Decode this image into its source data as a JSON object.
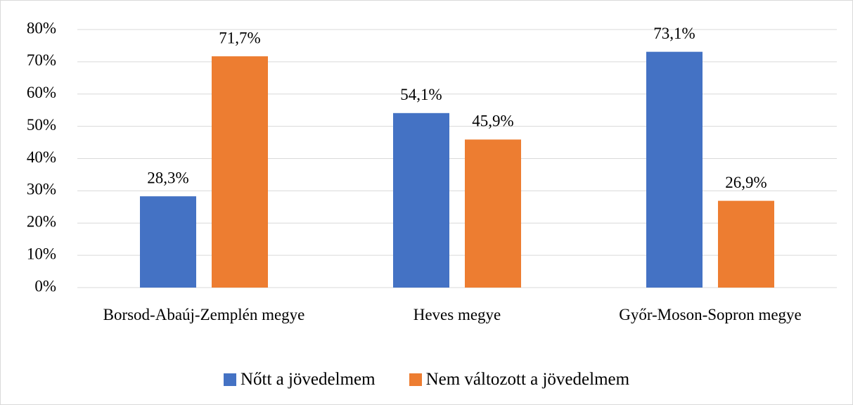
{
  "chart_data": {
    "type": "bar",
    "categories": [
      "Borsod-Abaúj-Zemplén megye",
      "Heves megye",
      "Győr-Moson-Sopron megye"
    ],
    "series": [
      {
        "name": "Nőtt a jövedelmem",
        "color": "#4472c4",
        "values": [
          28.3,
          54.1,
          73.1
        ],
        "value_labels": [
          "28,3%",
          "54,1%",
          "73,1%"
        ]
      },
      {
        "name": "Nem változott a jövedelmem",
        "color": "#ed7d31",
        "values": [
          71.7,
          45.9,
          26.9
        ],
        "value_labels": [
          "71,7%",
          "45,9%",
          "26,9%"
        ]
      }
    ],
    "ylim": [
      0,
      80
    ],
    "yticks": [
      {
        "value": 0,
        "label": "0%"
      },
      {
        "value": 10,
        "label": "10%"
      },
      {
        "value": 20,
        "label": "20%"
      },
      {
        "value": 30,
        "label": "30%"
      },
      {
        "value": 40,
        "label": "40%"
      },
      {
        "value": 50,
        "label": "50%"
      },
      {
        "value": 60,
        "label": "60%"
      },
      {
        "value": 70,
        "label": "70%"
      },
      {
        "value": 80,
        "label": "80%"
      }
    ],
    "grid": true,
    "legend": "bottom"
  }
}
